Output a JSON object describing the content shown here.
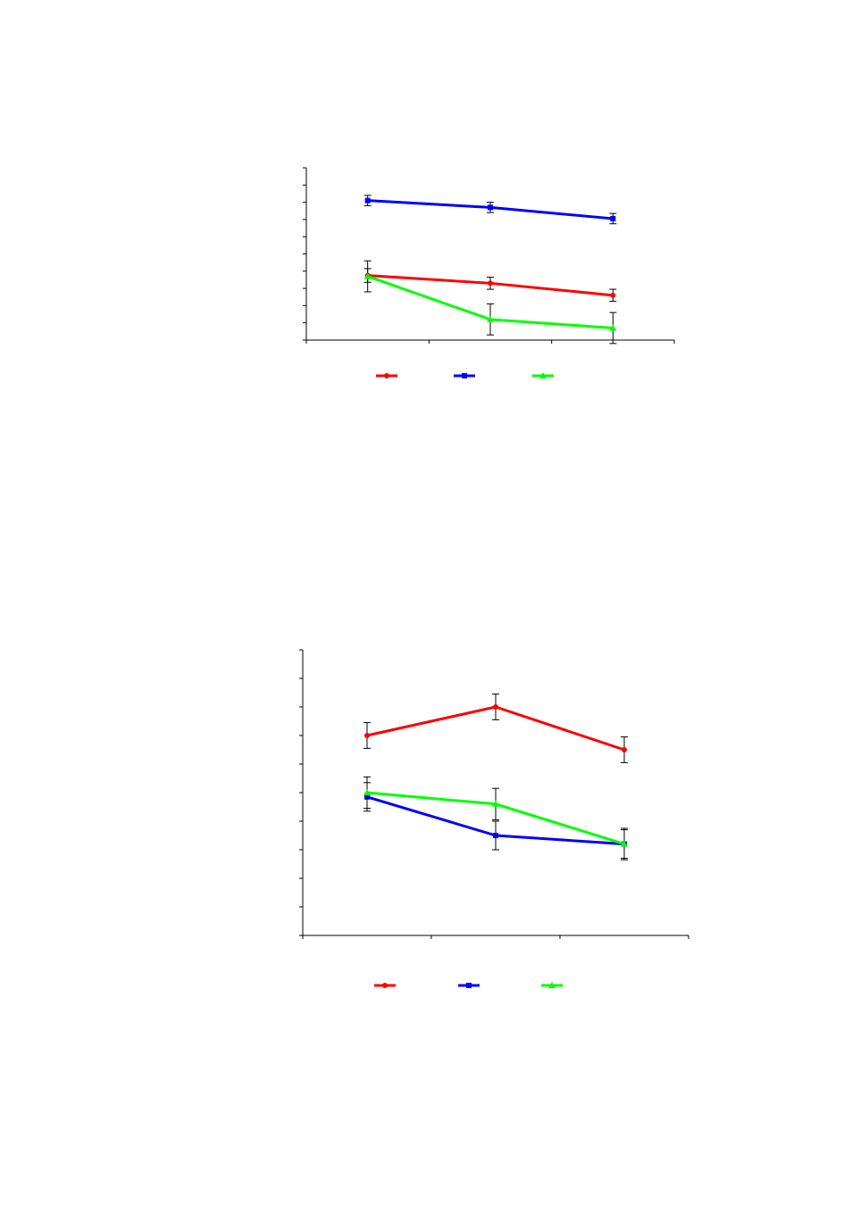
{
  "chart_data": [
    {
      "type": "line",
      "title": "",
      "xlabel": "",
      "ylabel": "",
      "x": [
        1,
        2,
        3
      ],
      "xlim": [
        0.5,
        3.5
      ],
      "ylim": [
        0,
        10
      ],
      "x_ticks": [
        0.5,
        1.5,
        2.5,
        3.5
      ],
      "y_ticks": [
        0,
        1,
        2,
        3,
        4,
        5,
        6,
        7,
        8,
        9,
        10
      ],
      "grid": false,
      "legend_placement": "bottom",
      "series": [
        {
          "color": "#ff0000",
          "marker": "circle",
          "values": [
            3.75,
            3.3,
            2.6
          ],
          "errors": [
            0.4,
            0.35,
            0.35
          ]
        },
        {
          "color": "#0000ff",
          "marker": "square",
          "values": [
            8.1,
            7.7,
            7.05
          ],
          "errors": [
            0.3,
            0.3,
            0.3
          ]
        },
        {
          "color": "#00ff00",
          "marker": "triangle",
          "values": [
            3.7,
            1.2,
            0.7
          ],
          "errors": [
            0.9,
            0.9,
            0.9
          ]
        }
      ]
    },
    {
      "type": "line",
      "title": "",
      "xlabel": "",
      "ylabel": "",
      "x": [
        1,
        2,
        3
      ],
      "xlim": [
        0.5,
        3.5
      ],
      "ylim": [
        0,
        10
      ],
      "x_ticks": [
        0.5,
        1.5,
        2.5,
        3.5
      ],
      "y_ticks": [
        0,
        1,
        2,
        3,
        4,
        5,
        6,
        7,
        8,
        9,
        10
      ],
      "grid": false,
      "legend_placement": "bottom",
      "series": [
        {
          "color": "#ff0000",
          "marker": "circle",
          "values": [
            7.0,
            8.0,
            6.5
          ],
          "errors": [
            0.45,
            0.45,
            0.45
          ]
        },
        {
          "color": "#0000ff",
          "marker": "square",
          "values": [
            4.85,
            3.5,
            3.2
          ],
          "errors": [
            0.5,
            0.5,
            0.5
          ]
        },
        {
          "color": "#00ff00",
          "marker": "triangle",
          "values": [
            5.0,
            4.6,
            3.2
          ],
          "errors": [
            0.55,
            0.55,
            0.55
          ]
        }
      ]
    }
  ]
}
